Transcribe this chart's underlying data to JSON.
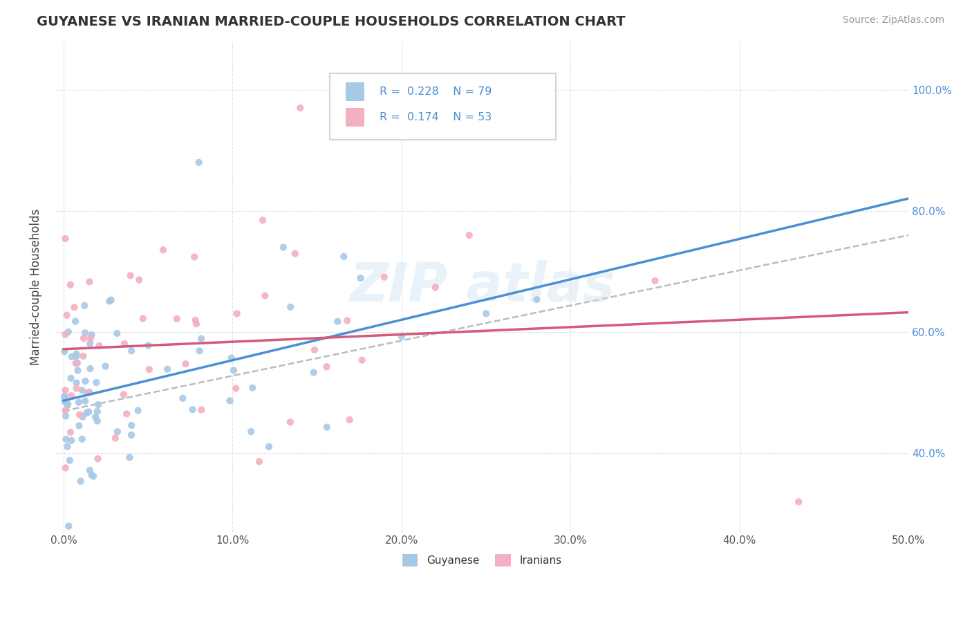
{
  "title": "GUYANESE VS IRANIAN MARRIED-COUPLE HOUSEHOLDS CORRELATION CHART",
  "source": "Source: ZipAtlas.com",
  "ylabel": "Married-couple Households",
  "x_tick_labels": [
    "0.0%",
    "10.0%",
    "20.0%",
    "30.0%",
    "40.0%",
    "50.0%"
  ],
  "x_tick_values": [
    0,
    10,
    20,
    30,
    40,
    50
  ],
  "y_tick_labels": [
    "40.0%",
    "60.0%",
    "80.0%",
    "100.0%"
  ],
  "y_tick_values": [
    40,
    60,
    80,
    100
  ],
  "xlim": [
    -0.5,
    50
  ],
  "ylim": [
    27,
    108
  ],
  "r_guyanese": 0.228,
  "n_guyanese": 79,
  "r_iranian": 0.174,
  "n_iranian": 53,
  "color_guyanese_dot": "#a8c8e8",
  "color_iranian_dot": "#f4afc0",
  "color_trend_blue": "#4a8fd4",
  "color_trend_pink": "#d45a7a",
  "color_dashed": "#aaaaaa",
  "color_blue_text": "#4a8fd4",
  "background_color": "#ffffff",
  "grid_color": "#cccccc",
  "legend_labels": [
    "Guyanese",
    "Iranians"
  ],
  "title_fontsize": 14,
  "axis_label_fontsize": 11,
  "source_fontsize": 10,
  "watermark_text": "ZIP atlas"
}
